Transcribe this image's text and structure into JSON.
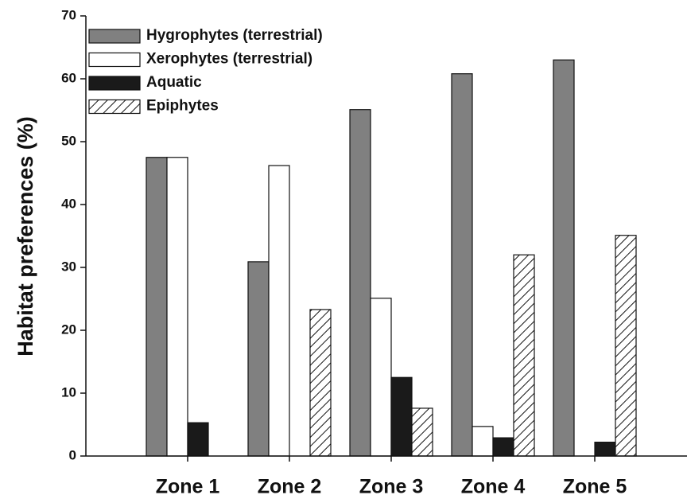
{
  "chart_data": {
    "type": "bar",
    "y_label": "Habitat preferences (%)",
    "categories": [
      "Zone 1",
      "Zone 2",
      "Zone 3",
      "Zone 4",
      "Zone 5"
    ],
    "series": [
      {
        "name": "Hygrophytes (terrestrial)",
        "color": "#808080",
        "values": [
          47.5,
          30.9,
          55.1,
          60.8,
          63.0
        ]
      },
      {
        "name": "Xerophytes (terrestrial)",
        "color": "#ffffff",
        "values": [
          47.5,
          46.2,
          25.1,
          4.7,
          0
        ]
      },
      {
        "name": "Aquatic",
        "color": "#1a1a1a",
        "values": [
          5.3,
          0,
          12.5,
          2.9,
          2.2
        ]
      },
      {
        "name": "Epiphytes",
        "color": "#ffffff",
        "hatch": true,
        "values": [
          0,
          23.3,
          7.6,
          32.0,
          35.1
        ]
      }
    ],
    "ylim": [
      0,
      70
    ],
    "yticks": [
      0,
      10,
      20,
      30,
      40,
      50,
      60,
      70
    ],
    "legend": "top-left"
  }
}
